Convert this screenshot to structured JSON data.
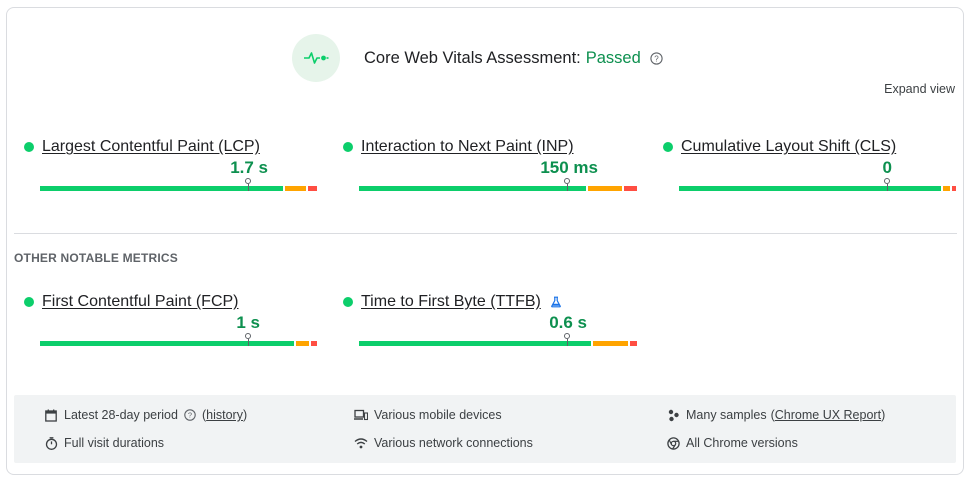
{
  "header": {
    "title": "Core Web Vitals Assessment:",
    "status": "Passed",
    "status_color": "#0d904f",
    "icon": "pulse-icon"
  },
  "expand_label": "Expand view",
  "core_metrics": [
    {
      "name": "Largest Contentful Paint (LCP)",
      "value": "1.7 s",
      "marker_fraction": 0.75
    },
    {
      "name": "Interaction to Next Paint (INP)",
      "value": "150 ms",
      "marker_fraction": 0.75
    },
    {
      "name": "Cumulative Layout Shift (CLS)",
      "value": "0",
      "marker_fraction": 0.75
    }
  ],
  "other_label": "OTHER NOTABLE METRICS",
  "other_metrics": [
    {
      "name": "First Contentful Paint (FCP)",
      "value": "1 s",
      "marker_fraction": 0.75
    },
    {
      "name": "Time to First Byte (TTFB)",
      "value": "0.6 s",
      "marker_fraction": 0.75,
      "badge_icon": "flask-icon"
    }
  ],
  "footer": {
    "period": {
      "text": "Latest 28-day period",
      "link": "history",
      "icon": "calendar-icon"
    },
    "visit": {
      "text": "Full visit durations",
      "icon": "timer-icon"
    },
    "devices": {
      "text": "Various mobile devices",
      "icon": "devices-icon"
    },
    "network": {
      "text": "Various network connections",
      "icon": "wifi-icon"
    },
    "samples": {
      "text": "Many samples",
      "link": "Chrome UX Report",
      "icon": "samples-icon"
    },
    "chrome": {
      "text": "All Chrome versions",
      "icon": "chrome-icon"
    }
  },
  "colors": {
    "good": "#0cce6b",
    "needs_improvement": "#ffa400",
    "poor": "#ff4e42",
    "value": "#0d904f"
  }
}
